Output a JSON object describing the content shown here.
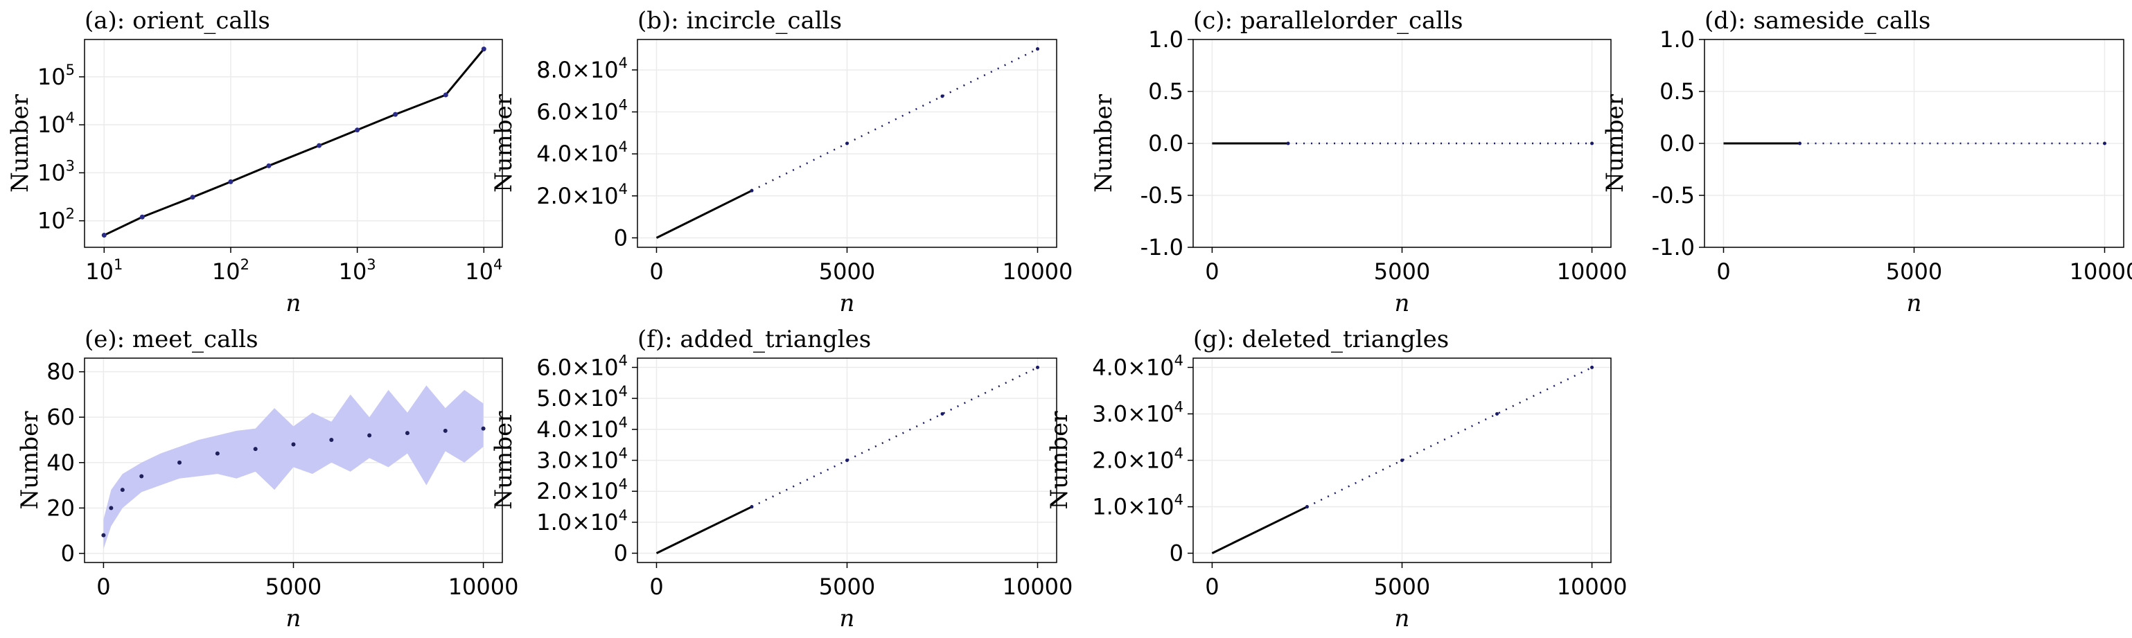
{
  "chart_data": [
    {
      "id": "a",
      "type": "scatter",
      "title": "(a): orient_calls",
      "xlabel": "n",
      "ylabel": "Number",
      "xscale": "log",
      "yscale": "log",
      "xlim": [
        7,
        14000
      ],
      "ylim": [
        28,
        600000
      ],
      "xticks": [
        10,
        100,
        1000,
        10000
      ],
      "xtick_labels": [
        "10|1",
        "10|2",
        "10|3",
        "10|4"
      ],
      "yticks": [
        100,
        1000,
        10000,
        100000
      ],
      "ytick_labels": [
        "10|2",
        "10|3",
        "10|4",
        "10|5"
      ],
      "series": [
        {
          "style": "dots",
          "x": [
            10,
            20,
            50,
            100,
            200,
            500,
            1000,
            2000,
            5000,
            10000
          ],
          "y": [
            50,
            120,
            310,
            650,
            1400,
            3700,
            7800,
            16500,
            42000,
            380000
          ]
        }
      ],
      "grid": true,
      "colors": {
        "points": "#2b2b6e",
        "line": "#000000",
        "band": "#c5c5f5"
      }
    },
    {
      "id": "b",
      "type": "scatter",
      "title": "(b): incircle_calls",
      "xlabel": "n",
      "ylabel": "Number",
      "xlim": [
        -500,
        10500
      ],
      "ylim": [
        -4500,
        94500
      ],
      "xticks": [
        0,
        5000,
        10000
      ],
      "xtick_labels": [
        "0",
        "5000",
        "10000"
      ],
      "yticks": [
        0,
        20000,
        40000,
        60000,
        80000
      ],
      "ytick_labels": [
        "0",
        "2.0×10|4",
        "4.0×10|4",
        "6.0×10|4",
        "8.0×10|4"
      ],
      "series": [
        {
          "style": "line",
          "x": [
            0,
            2500
          ],
          "y": [
            0,
            22500
          ]
        },
        {
          "style": "dots",
          "x": [
            2500,
            5000,
            7500,
            10000
          ],
          "y": [
            22500,
            45000,
            67500,
            90000
          ]
        }
      ],
      "grid": true
    },
    {
      "id": "c",
      "type": "scatter",
      "title": "(c): parallelorder_calls",
      "xlabel": "n",
      "ylabel": "Number",
      "xlim": [
        -500,
        10500
      ],
      "ylim": [
        -1,
        1
      ],
      "xticks": [
        0,
        5000,
        10000
      ],
      "xtick_labels": [
        "0",
        "5000",
        "10000"
      ],
      "yticks": [
        -1,
        -0.5,
        0,
        0.5,
        1
      ],
      "ytick_labels": [
        "-1.0",
        "-0.5",
        "0.0",
        "0.5",
        "1.0"
      ],
      "series": [
        {
          "style": "line",
          "x": [
            0,
            2000
          ],
          "y": [
            0,
            0
          ]
        },
        {
          "style": "dots",
          "x": [
            2000,
            10000
          ],
          "y": [
            0,
            0
          ]
        }
      ],
      "grid": true
    },
    {
      "id": "d",
      "type": "scatter",
      "title": "(d): sameside_calls",
      "xlabel": "n",
      "ylabel": "Number",
      "xlim": [
        -500,
        10500
      ],
      "ylim": [
        -1,
        1
      ],
      "xticks": [
        0,
        5000,
        10000
      ],
      "xtick_labels": [
        "0",
        "5000",
        "10000"
      ],
      "yticks": [
        -1,
        -0.5,
        0,
        0.5,
        1
      ],
      "ytick_labels": [
        "-1.0",
        "-0.5",
        "0.0",
        "0.5",
        "1.0"
      ],
      "series": [
        {
          "style": "line",
          "x": [
            0,
            2000
          ],
          "y": [
            0,
            0
          ]
        },
        {
          "style": "dots",
          "x": [
            2000,
            10000
          ],
          "y": [
            0,
            0
          ]
        }
      ],
      "grid": true
    },
    {
      "id": "e",
      "type": "scatter",
      "title": "(e): meet_calls",
      "xlabel": "n",
      "ylabel": "Number",
      "xlim": [
        -500,
        10500
      ],
      "ylim": [
        -4,
        86
      ],
      "xticks": [
        0,
        5000,
        10000
      ],
      "xtick_labels": [
        "0",
        "5000",
        "10000"
      ],
      "yticks": [
        0,
        20,
        40,
        60,
        80
      ],
      "ytick_labels": [
        "0",
        "20",
        "40",
        "60",
        "80"
      ],
      "band": {
        "x": [
          0,
          200,
          500,
          1000,
          1500,
          2000,
          2500,
          3000,
          3500,
          4000,
          4500,
          5000,
          5500,
          6000,
          6500,
          7000,
          7500,
          8000,
          8500,
          9000,
          9500,
          10000
        ],
        "lower": [
          2,
          12,
          20,
          27,
          30,
          33,
          34,
          35,
          33,
          36,
          28,
          38,
          35,
          40,
          36,
          42,
          38,
          44,
          30,
          45,
          40,
          47
        ],
        "upper": [
          15,
          28,
          35,
          40,
          44,
          47,
          50,
          52,
          54,
          55,
          64,
          56,
          62,
          58,
          70,
          60,
          72,
          62,
          74,
          64,
          72,
          66
        ]
      },
      "series": [
        {
          "style": "dots",
          "x": [
            0,
            200,
            500,
            1000,
            2000,
            3000,
            4000,
            5000,
            6000,
            7000,
            8000,
            9000,
            10000
          ],
          "y": [
            8,
            20,
            28,
            34,
            40,
            44,
            46,
            48,
            50,
            52,
            53,
            54,
            55
          ]
        }
      ],
      "grid": true
    },
    {
      "id": "f",
      "type": "scatter",
      "title": "(f): added_triangles",
      "xlabel": "n",
      "ylabel": "Number",
      "xlim": [
        -500,
        10500
      ],
      "ylim": [
        -3000,
        63000
      ],
      "xticks": [
        0,
        5000,
        10000
      ],
      "xtick_labels": [
        "0",
        "5000",
        "10000"
      ],
      "yticks": [
        0,
        10000,
        20000,
        30000,
        40000,
        50000,
        60000
      ],
      "ytick_labels": [
        "0",
        "1.0×10|4",
        "2.0×10|4",
        "3.0×10|4",
        "4.0×10|4",
        "5.0×10|4",
        "6.0×10|4"
      ],
      "series": [
        {
          "style": "line",
          "x": [
            0,
            2500
          ],
          "y": [
            0,
            15000
          ]
        },
        {
          "style": "dots",
          "x": [
            2500,
            5000,
            7500,
            10000
          ],
          "y": [
            15000,
            30000,
            45000,
            60000
          ]
        }
      ],
      "grid": true
    },
    {
      "id": "g",
      "type": "scatter",
      "title": "(g): deleted_triangles",
      "xlabel": "n",
      "ylabel": "Number",
      "xlim": [
        -500,
        10500
      ],
      "ylim": [
        -2000,
        42000
      ],
      "xticks": [
        0,
        5000,
        10000
      ],
      "xtick_labels": [
        "0",
        "5000",
        "10000"
      ],
      "yticks": [
        0,
        10000,
        20000,
        30000,
        40000
      ],
      "ytick_labels": [
        "0",
        "1.0×10|4",
        "2.0×10|4",
        "3.0×10|4",
        "4.0×10|4"
      ],
      "series": [
        {
          "style": "line",
          "x": [
            0,
            2500
          ],
          "y": [
            0,
            10000
          ]
        },
        {
          "style": "dots",
          "x": [
            2500,
            5000,
            7500,
            10000
          ],
          "y": [
            10000,
            20000,
            30000,
            40000
          ]
        }
      ],
      "grid": true
    }
  ]
}
